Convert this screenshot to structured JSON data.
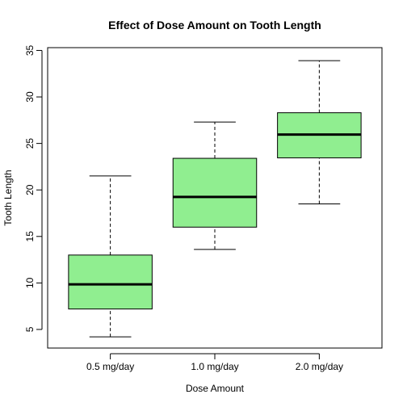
{
  "chart_data": {
    "type": "boxplot",
    "title": "Effect of Dose Amount on Tooth Length",
    "xlabel": "Dose Amount",
    "ylabel": "Tooth Length",
    "ylim": [
      3,
      35.3
    ],
    "yticks": [
      5,
      10,
      15,
      20,
      25,
      30,
      35
    ],
    "box_color": "#90EE90",
    "categories": [
      "0.5 mg/day",
      "1.0 mg/day",
      "2.0 mg/day"
    ],
    "boxes": [
      {
        "min": 4.2,
        "q1": 7.2,
        "median": 9.85,
        "q3": 13.0,
        "max": 21.5
      },
      {
        "min": 13.6,
        "q1": 16.0,
        "median": 19.25,
        "q3": 23.4,
        "max": 27.3
      },
      {
        "min": 18.5,
        "q1": 23.45,
        "median": 25.95,
        "q3": 28.3,
        "max": 33.9
      }
    ]
  }
}
